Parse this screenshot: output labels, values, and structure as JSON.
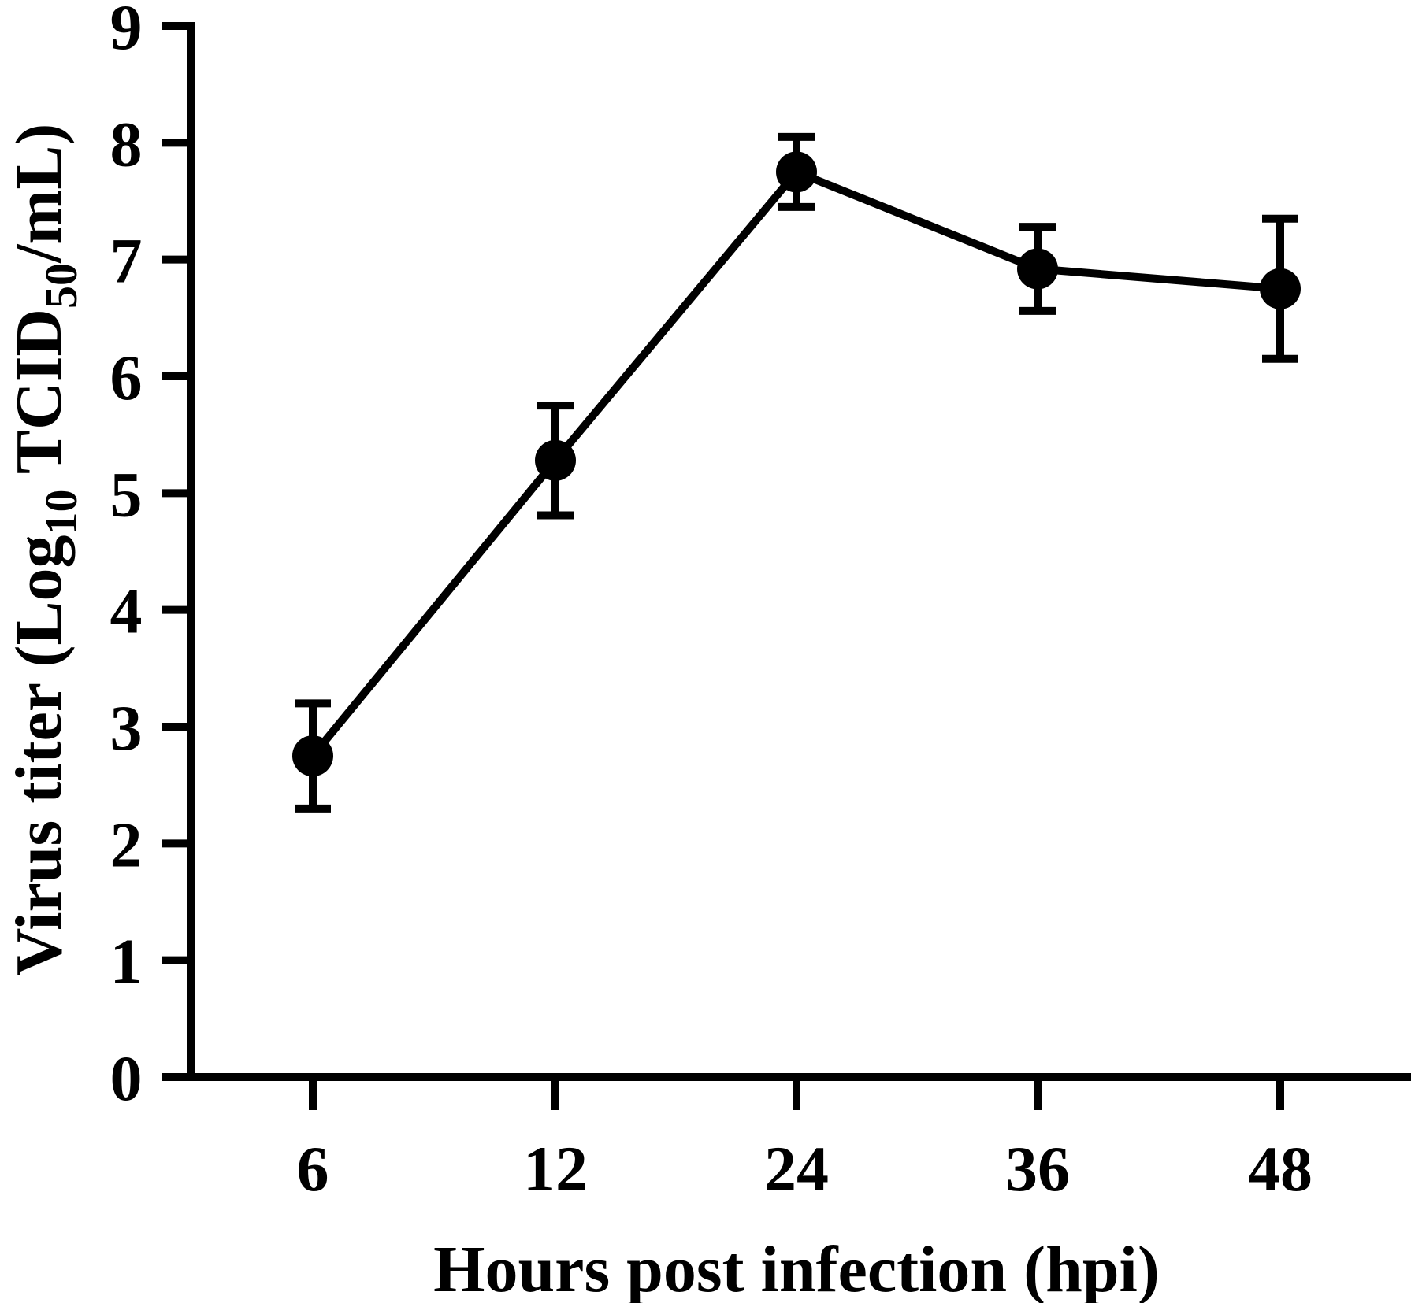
{
  "chart_data": {
    "type": "line",
    "xlabel": "Hours post infection (hpi)",
    "ylabel": {
      "prefix": "Virus titer (Log",
      "sub1": "10",
      "middle": " TCID",
      "sub2": "50",
      "suffix": "/mL)"
    },
    "categories": [
      "6",
      "12",
      "24",
      "36",
      "48"
    ],
    "ylim": [
      0,
      9
    ],
    "yticks": [
      "0",
      "1",
      "2",
      "3",
      "4",
      "5",
      "6",
      "7",
      "8",
      "9"
    ],
    "series": [
      {
        "values": [
          2.75,
          5.28,
          7.75,
          6.92,
          6.75
        ],
        "error": [
          0.45,
          0.47,
          0.3,
          0.36,
          0.6
        ]
      }
    ],
    "grid": false,
    "colors": {
      "line": "#000000",
      "axis": "#000000"
    }
  }
}
